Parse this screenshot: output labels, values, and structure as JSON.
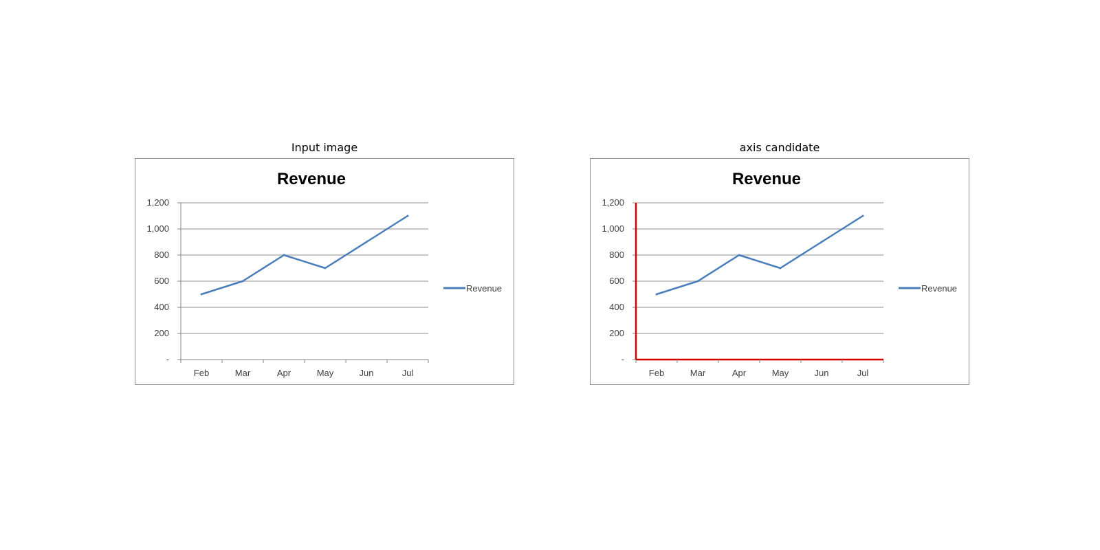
{
  "panels": [
    {
      "caption": "Input image",
      "highlight_axes": false
    },
    {
      "caption": "axis candidate",
      "highlight_axes": true
    }
  ],
  "colors": {
    "series": "#4a7ebb",
    "grid": "#b3b3b3",
    "axis": "#868686",
    "highlight": "#d40000"
  },
  "chart_data": [
    {
      "type": "line",
      "title": "Revenue",
      "categories": [
        "Feb",
        "Mar",
        "Apr",
        "May",
        "Jun",
        "Jul"
      ],
      "series": [
        {
          "name": "Revenue",
          "values": [
            500,
            600,
            800,
            700,
            900,
            1100
          ]
        }
      ],
      "ylim": [
        0,
        1200
      ],
      "yticks": [
        0,
        200,
        400,
        600,
        800,
        1000,
        1200
      ],
      "ytick_labels": [
        "-",
        "200",
        "400",
        "600",
        "800",
        "1,000",
        "1,200"
      ],
      "grid": true,
      "legend": "right"
    },
    {
      "type": "line",
      "title": "Revenue",
      "categories": [
        "Feb",
        "Mar",
        "Apr",
        "May",
        "Jun",
        "Jul"
      ],
      "series": [
        {
          "name": "Revenue",
          "values": [
            500,
            600,
            800,
            700,
            900,
            1100
          ]
        }
      ],
      "ylim": [
        0,
        1200
      ],
      "yticks": [
        0,
        200,
        400,
        600,
        800,
        1000,
        1200
      ],
      "ytick_labels": [
        "-",
        "200",
        "400",
        "600",
        "800",
        "1,000",
        "1,200"
      ],
      "grid": true,
      "legend": "right"
    }
  ]
}
